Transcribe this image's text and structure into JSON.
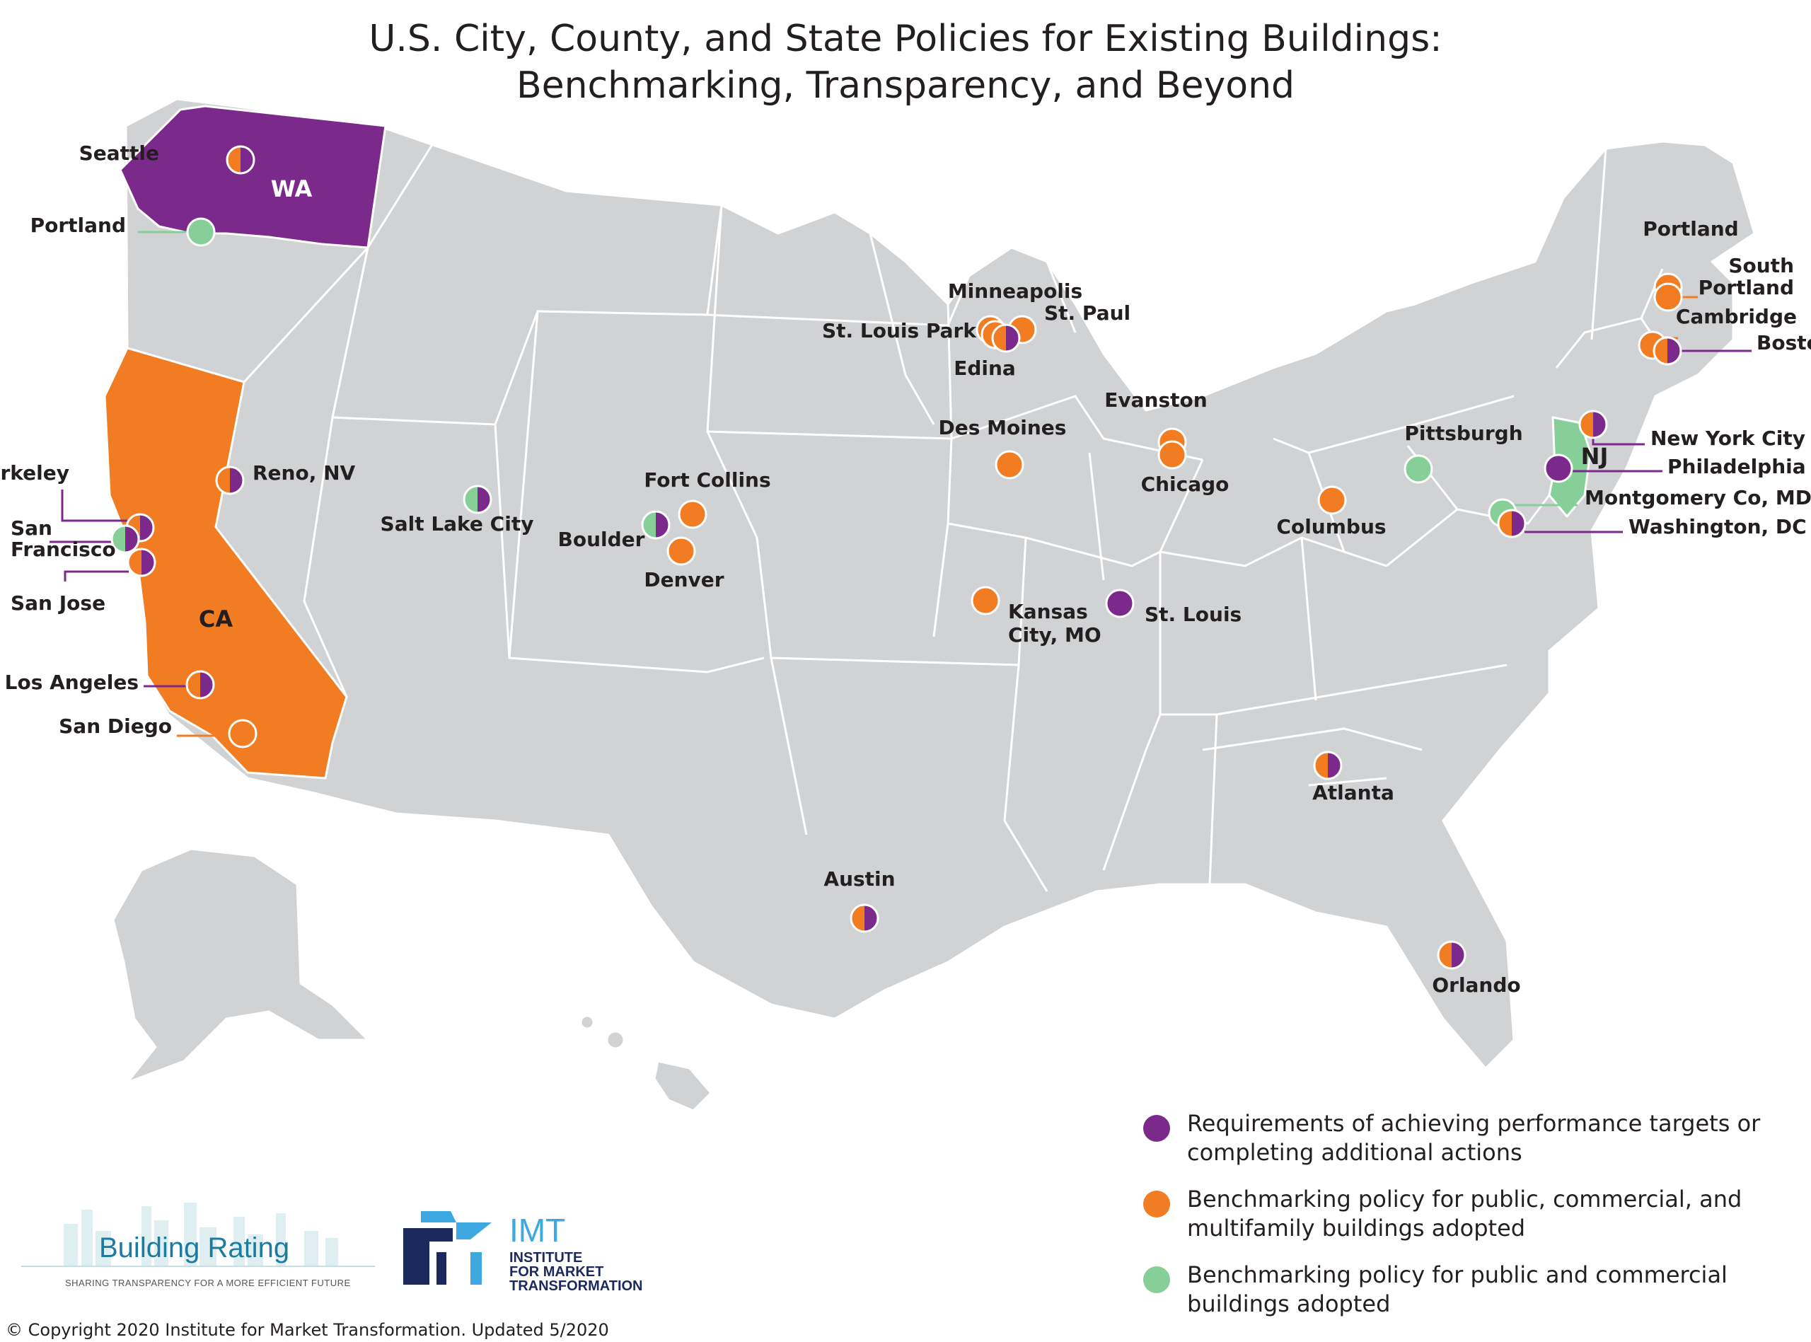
{
  "title": {
    "line1": "U.S. City, County, and State Policies for Existing Buildings:",
    "line2": "Benchmarking, Transparency, and Beyond"
  },
  "colors": {
    "performance": "#7b2a8c",
    "benchmark_full": "#f27c22",
    "benchmark_partial": "#86cf98",
    "land": "#d1d2d4",
    "borders": "#ffffff"
  },
  "states": [
    {
      "id": "wa",
      "label": "WA",
      "policy": "performance"
    },
    {
      "id": "ca",
      "label": "CA",
      "policy": "benchmark_full"
    },
    {
      "id": "nj",
      "label": "NJ",
      "policy": "benchmark_partial"
    }
  ],
  "cities": [
    {
      "id": "seattle",
      "name": "Seattle",
      "policies": [
        "benchmark_full",
        "performance"
      ]
    },
    {
      "id": "portland-or",
      "name": "Portland",
      "policies": [
        "benchmark_partial"
      ]
    },
    {
      "id": "berkeley",
      "name": "Berkeley",
      "policies": [
        "benchmark_full",
        "performance"
      ]
    },
    {
      "id": "san-francisco",
      "name": "San Francisco",
      "name_line1": "San",
      "name_line2": "Francisco",
      "policies": [
        "benchmark_partial",
        "performance"
      ]
    },
    {
      "id": "san-jose",
      "name": "San Jose",
      "policies": [
        "benchmark_full",
        "performance"
      ]
    },
    {
      "id": "los-angeles",
      "name": "Los Angeles",
      "policies": [
        "benchmark_full",
        "performance"
      ]
    },
    {
      "id": "san-diego",
      "name": "San Diego",
      "policies": [
        "benchmark_full"
      ]
    },
    {
      "id": "reno",
      "name": "Reno, NV",
      "policies": [
        "benchmark_full",
        "performance"
      ]
    },
    {
      "id": "salt-lake-city",
      "name": "Salt Lake City",
      "policies": [
        "benchmark_partial",
        "performance"
      ]
    },
    {
      "id": "boulder",
      "name": "Boulder",
      "policies": [
        "benchmark_partial",
        "performance"
      ]
    },
    {
      "id": "fort-collins",
      "name": "Fort Collins",
      "policies": [
        "benchmark_full"
      ]
    },
    {
      "id": "denver",
      "name": "Denver",
      "policies": [
        "benchmark_full"
      ]
    },
    {
      "id": "kansas-city",
      "name": "Kansas City, MO",
      "name_line1": "Kansas",
      "name_line2": "City, MO",
      "policies": [
        "benchmark_full"
      ]
    },
    {
      "id": "st-louis",
      "name": "St. Louis",
      "policies": [
        "performance"
      ]
    },
    {
      "id": "des-moines",
      "name": "Des Moines",
      "policies": [
        "benchmark_full"
      ]
    },
    {
      "id": "minneapolis",
      "name": "Minneapolis",
      "policies": [
        "benchmark_full"
      ]
    },
    {
      "id": "st-paul",
      "name": "St. Paul",
      "policies": [
        "benchmark_full"
      ]
    },
    {
      "id": "st-louis-park",
      "name": "St. Louis Park",
      "policies": [
        "benchmark_full"
      ]
    },
    {
      "id": "edina",
      "name": "Edina",
      "policies": [
        "benchmark_full",
        "performance"
      ]
    },
    {
      "id": "evanston",
      "name": "Evanston",
      "policies": [
        "benchmark_full"
      ]
    },
    {
      "id": "chicago",
      "name": "Chicago",
      "policies": [
        "benchmark_full"
      ]
    },
    {
      "id": "columbus",
      "name": "Columbus",
      "policies": [
        "benchmark_full"
      ]
    },
    {
      "id": "pittsburgh",
      "name": "Pittsburgh",
      "policies": [
        "benchmark_partial"
      ]
    },
    {
      "id": "atlanta",
      "name": "Atlanta",
      "policies": [
        "benchmark_full",
        "performance"
      ]
    },
    {
      "id": "austin",
      "name": "Austin",
      "policies": [
        "benchmark_full",
        "performance"
      ]
    },
    {
      "id": "orlando",
      "name": "Orlando",
      "policies": [
        "benchmark_full",
        "performance"
      ]
    },
    {
      "id": "portland-me",
      "name": "Portland",
      "policies": [
        "benchmark_full"
      ]
    },
    {
      "id": "south-portland",
      "name": "South Portland",
      "name_line1": "South",
      "name_line2": "Portland",
      "policies": [
        "benchmark_full"
      ]
    },
    {
      "id": "cambridge",
      "name": "Cambridge",
      "policies": [
        "benchmark_full"
      ]
    },
    {
      "id": "boston",
      "name": "Boston",
      "policies": [
        "benchmark_full",
        "performance"
      ]
    },
    {
      "id": "new-york-city",
      "name": "New York City",
      "policies": [
        "benchmark_full",
        "performance"
      ]
    },
    {
      "id": "philadelphia",
      "name": "Philadelphia",
      "policies": [
        "performance"
      ]
    },
    {
      "id": "montgomery-co",
      "name": "Montgomery Co, MD",
      "policies": [
        "benchmark_partial"
      ]
    },
    {
      "id": "washington-dc",
      "name": "Washington, DC",
      "policies": [
        "benchmark_full",
        "performance"
      ]
    }
  ],
  "legend": [
    {
      "key": "performance",
      "text": "Requirements of achieving performance targets or completing additional actions"
    },
    {
      "key": "benchmark_full",
      "text": "Benchmarking policy for public, commercial, and multifamily buildings adopted"
    },
    {
      "key": "benchmark_partial",
      "text": "Benchmarking policy for public and commercial buildings adopted"
    }
  ],
  "logos": {
    "building_rating": {
      "name": "Building Rating",
      "tagline": "SHARING TRANSPARENCY FOR A MORE EFFICIENT FUTURE"
    },
    "imt": {
      "name": "IMT",
      "line1": "INSTITUTE",
      "line2": "FOR MARKET",
      "line3": "TRANSFORMATION"
    }
  },
  "copyright": "© Copyright 2020 Institute for Market Transformation. Updated 5/2020"
}
